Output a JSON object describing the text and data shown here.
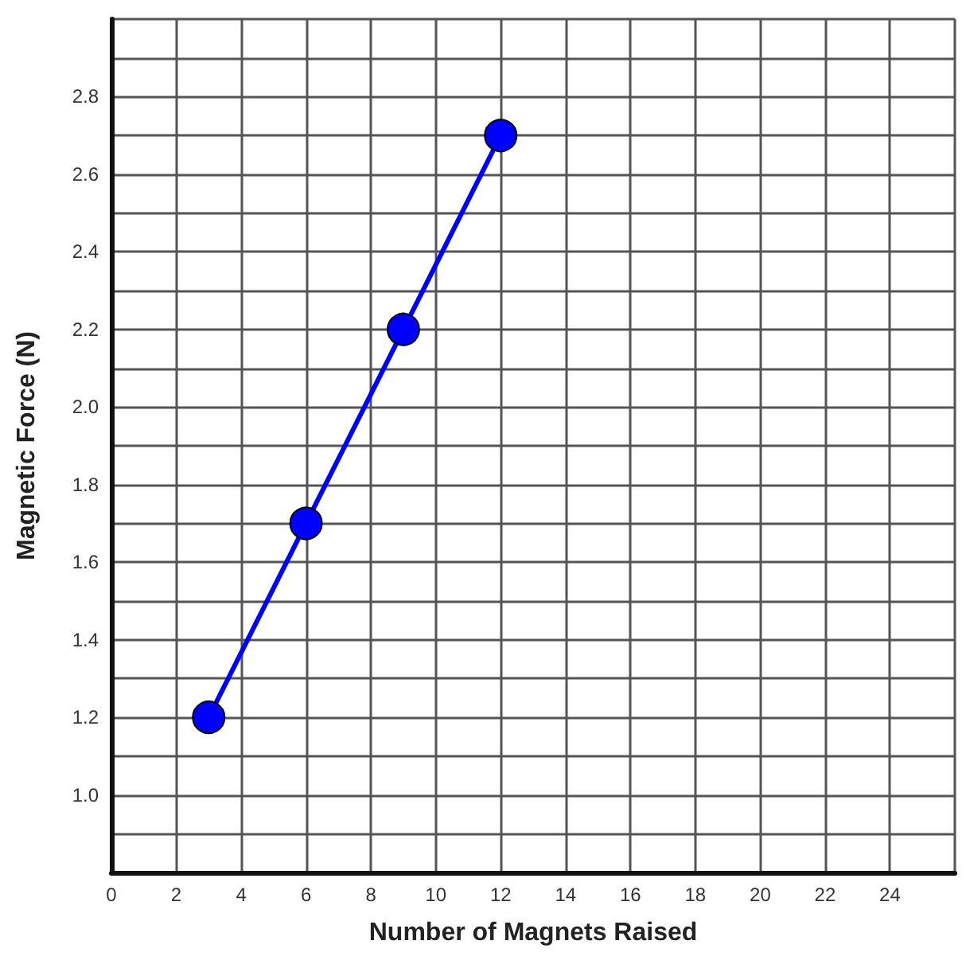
{
  "chart_data": {
    "type": "line",
    "xlabel": "Number of Magnets Raised",
    "ylabel": "Magnetic Force (N)",
    "x": [
      3,
      6,
      9,
      12
    ],
    "series": [
      {
        "color": "#0000ff",
        "values": [
          1.2,
          1.7,
          2.2,
          2.7
        ]
      }
    ],
    "xlim": [
      0,
      26
    ],
    "xticks": [
      0,
      2,
      4,
      6,
      8,
      10,
      12,
      14,
      16,
      18,
      20,
      22,
      24,
      {
        "value": 26,
        "label": null
      }
    ],
    "ylim": [
      0.8,
      3.0
    ],
    "yticks": [
      {
        "value": 0.8,
        "label": null
      },
      {
        "value": 0.9,
        "label": null
      },
      {
        "value": 1.0,
        "label": "1.0"
      },
      {
        "value": 1.1,
        "label": null
      },
      {
        "value": 1.2,
        "label": "1.2"
      },
      {
        "value": 1.3,
        "label": null
      },
      {
        "value": 1.4,
        "label": "1.4"
      },
      {
        "value": 1.5,
        "label": null
      },
      {
        "value": 1.6,
        "label": "1.6"
      },
      {
        "value": 1.7,
        "label": null
      },
      {
        "value": 1.8,
        "label": "1.8"
      },
      {
        "value": 1.9,
        "label": null
      },
      {
        "value": 2.0,
        "label": "2.0"
      },
      {
        "value": 2.1,
        "label": null
      },
      {
        "value": 2.2,
        "label": "2.2"
      },
      {
        "value": 2.3,
        "label": null
      },
      {
        "value": 2.4,
        "label": "2.4"
      },
      {
        "value": 2.5,
        "label": null
      },
      {
        "value": 2.6,
        "label": "2.6"
      },
      {
        "value": 2.7,
        "label": null
      },
      {
        "value": 2.8,
        "label": "2.8"
      },
      {
        "value": 2.9,
        "label": null
      },
      {
        "value": 3.0,
        "label": null
      }
    ],
    "grid": true,
    "marker": "circle",
    "line_style": "solid"
  }
}
